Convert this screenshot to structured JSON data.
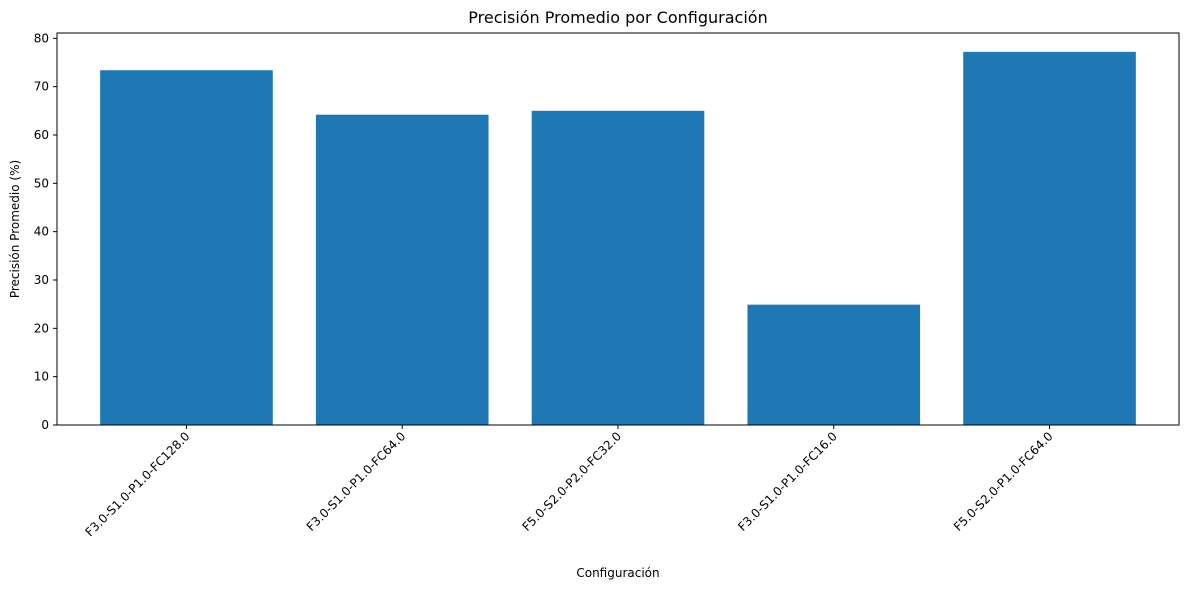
{
  "chart_data": {
    "type": "bar",
    "title": "Precisión Promedio por Configuración",
    "xlabel": "Configuración",
    "ylabel": "Precisión Promedio (%)",
    "categories": [
      "F3.0-S1.0-P1.0-FC128.0",
      "F3.0-S1.0-P1.0-FC64.0",
      "F5.0-S2.0-P2.0-FC32.0",
      "F3.0-S1.0-P1.0-FC16.0",
      "F5.0-S2.0-P1.0-FC64.0"
    ],
    "values": [
      73.4,
      64.2,
      65.0,
      24.9,
      77.2
    ],
    "ylim": [
      0,
      81.1
    ],
    "yticks": [
      0,
      10,
      20,
      30,
      40,
      50,
      60,
      70,
      80
    ],
    "bar_color": "#1f77b4",
    "grid": false,
    "legend": false,
    "xtick_rotation": "45 degrees"
  }
}
